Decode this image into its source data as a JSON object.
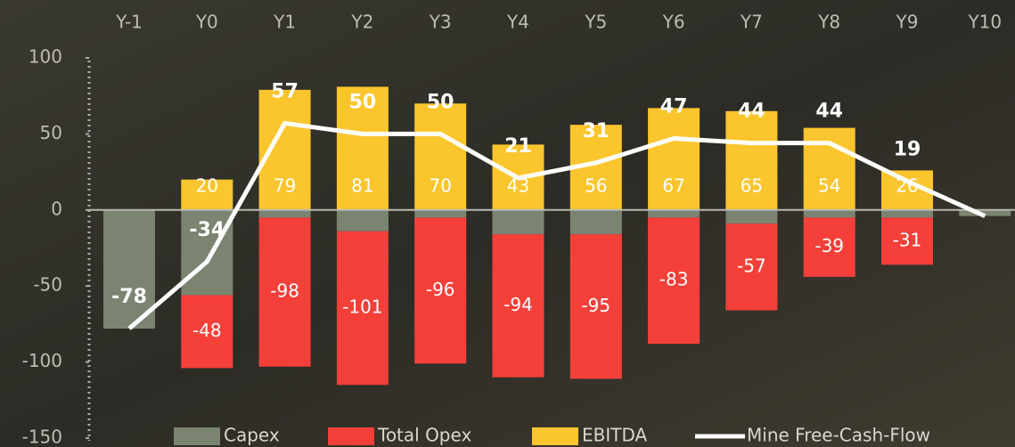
{
  "chart_data": {
    "type": "bar",
    "categories": [
      "Y-1",
      "Y0",
      "Y1",
      "Y2",
      "Y3",
      "Y4",
      "Y5",
      "Y6",
      "Y7",
      "Y8",
      "Y9",
      "Y10"
    ],
    "ylim": [
      -150,
      100
    ],
    "yticks": [
      -150,
      -100,
      -50,
      0,
      50,
      100
    ],
    "stacked": true,
    "legend": "bottom",
    "series": [
      {
        "name": "Capex",
        "type": "bar",
        "color": "#7b8470",
        "values": [
          -78,
          -56,
          -5,
          -14,
          -5,
          -16,
          -16,
          -5,
          -9,
          -5,
          -5,
          -4
        ]
      },
      {
        "name": "Total Opex",
        "type": "bar",
        "color": "#f5403a",
        "values": [
          null,
          -48,
          -98,
          -101,
          -96,
          -94,
          -95,
          -83,
          -57,
          -39,
          -31,
          null
        ],
        "labels": true
      },
      {
        "name": "EBITDA",
        "type": "bar",
        "color": "#fbc52e",
        "values": [
          null,
          20,
          79,
          81,
          70,
          43,
          56,
          67,
          65,
          54,
          26,
          null
        ],
        "labels": true
      },
      {
        "name": "Mine Free-Cash-Flow",
        "type": "line",
        "color": "#ffffff",
        "values": [
          -78,
          -34,
          57,
          50,
          50,
          21,
          31,
          47,
          44,
          44,
          19,
          -4
        ],
        "value_labels": [
          "-78",
          "-34",
          "57",
          "50",
          "50",
          "21",
          "31",
          "47",
          "44",
          "44",
          "19",
          null
        ]
      }
    ]
  }
}
